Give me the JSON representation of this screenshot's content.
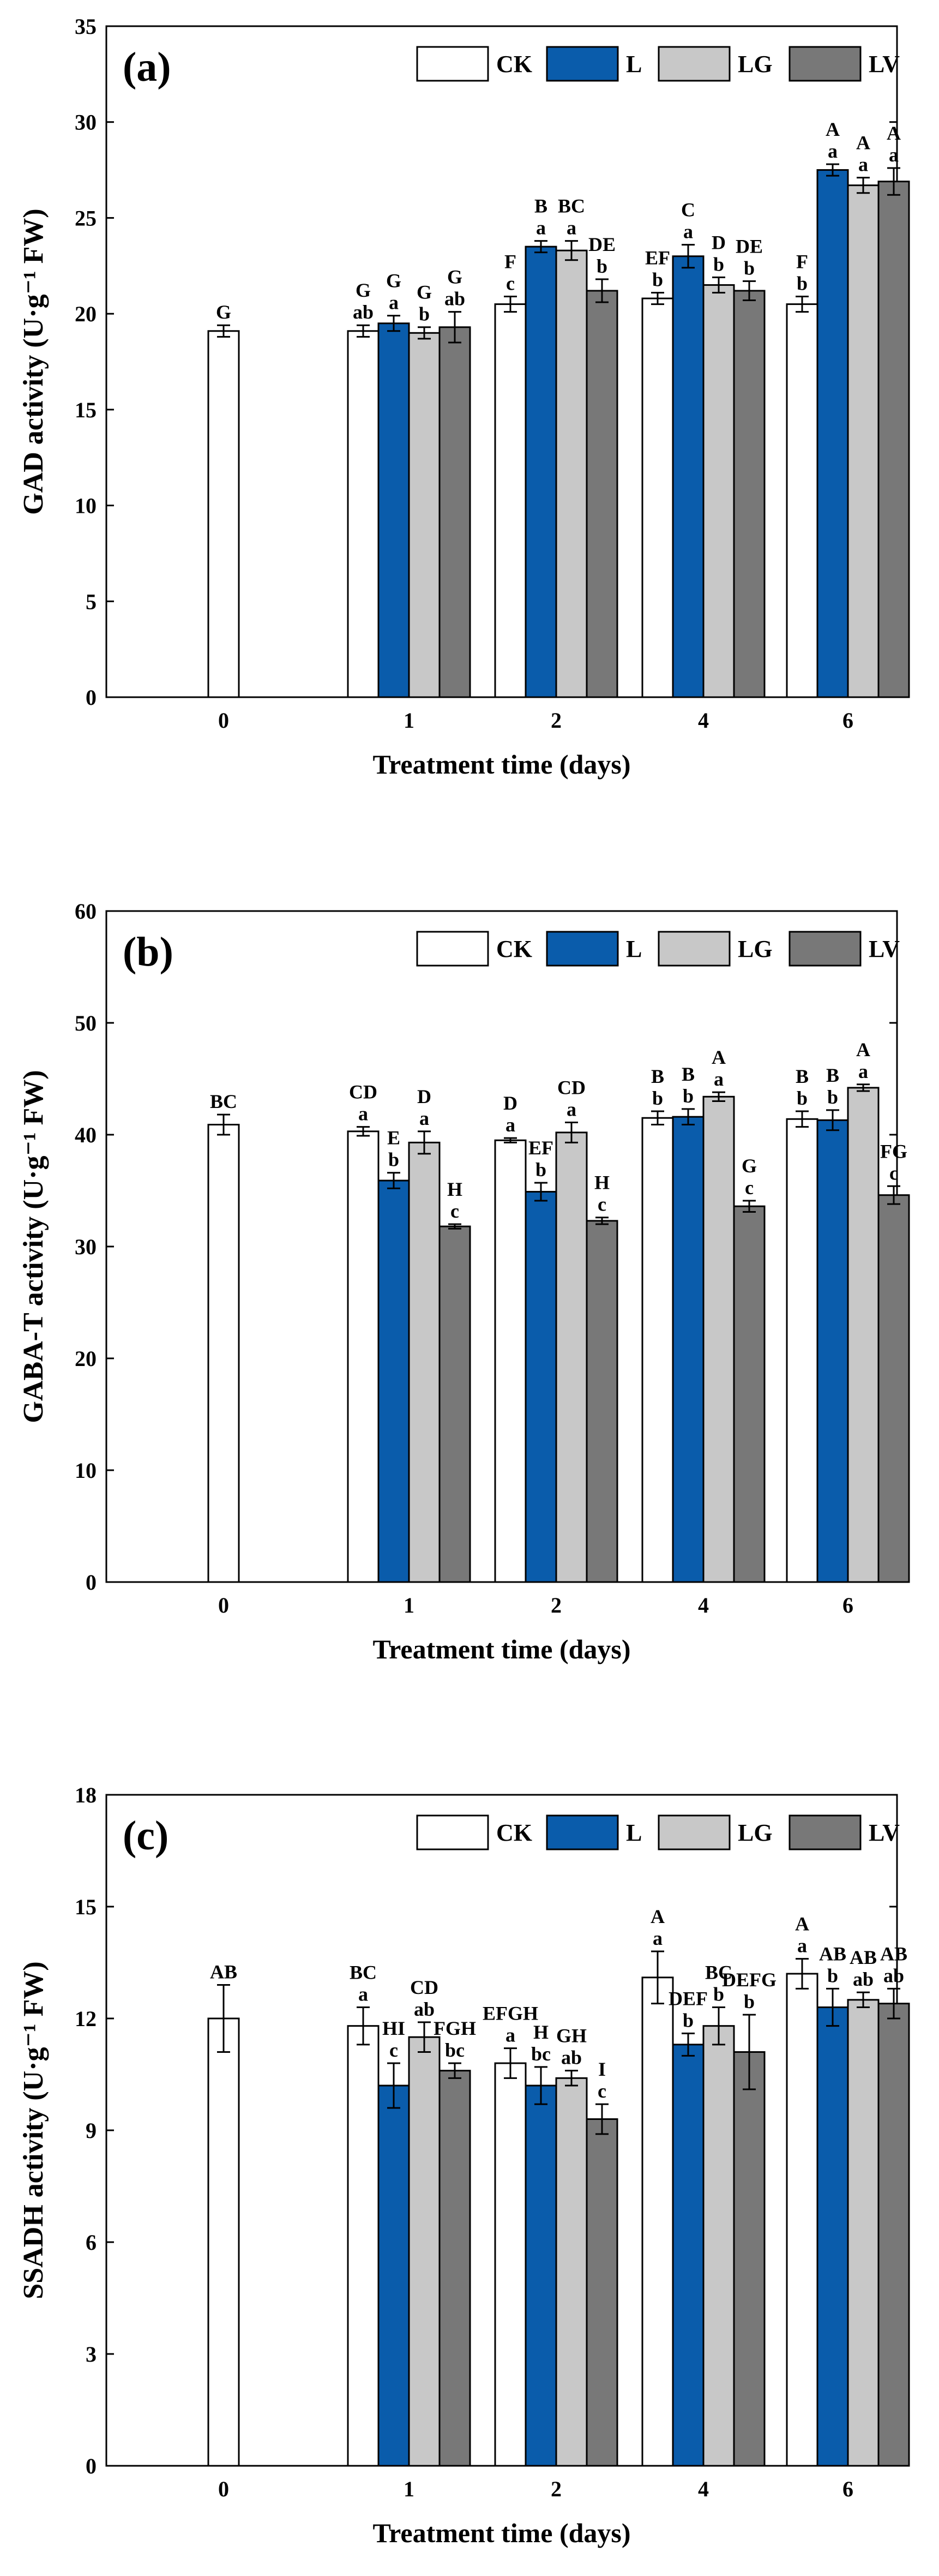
{
  "figure": {
    "series_colors": [
      "#ffffff",
      "#0a5cab",
      "#c8c8c8",
      "#787878"
    ]
  },
  "chart_data": [
    {
      "panel": "(a)",
      "type": "bar",
      "ylabel": "GAD activity (U·g⁻¹ FW)",
      "xlabel": "Treatment time (days)",
      "ylim": [
        0,
        35
      ],
      "yticks": [
        0,
        5,
        10,
        15,
        20,
        25,
        30,
        35
      ],
      "categories": [
        "0",
        "1",
        "2",
        "4",
        "6"
      ],
      "legend": [
        "CK",
        "L",
        "LG",
        "LV"
      ],
      "legend_position": "top-right",
      "series": [
        {
          "name": "CK",
          "values": [
            19.1,
            19.1,
            20.5,
            20.8,
            20.5
          ],
          "errors": [
            0.3,
            0.3,
            0.4,
            0.3,
            0.4
          ],
          "upper": [
            "G",
            "G",
            "F",
            "EF",
            "F"
          ],
          "lower": [
            "",
            "ab",
            "c",
            "b",
            "b"
          ]
        },
        {
          "name": "L",
          "values": [
            null,
            19.5,
            23.5,
            23.0,
            27.5
          ],
          "errors": [
            null,
            0.4,
            0.3,
            0.6,
            0.3
          ],
          "upper": [
            "",
            "G",
            "B",
            "C",
            "A"
          ],
          "lower": [
            "",
            "a",
            "a",
            "a",
            "a"
          ]
        },
        {
          "name": "LG",
          "values": [
            null,
            19.0,
            23.3,
            21.5,
            26.7
          ],
          "errors": [
            null,
            0.3,
            0.5,
            0.4,
            0.4
          ],
          "upper": [
            "",
            "G",
            "BC",
            "D",
            "A"
          ],
          "lower": [
            "",
            "b",
            "a",
            "b",
            "a"
          ]
        },
        {
          "name": "LV",
          "values": [
            null,
            19.3,
            21.2,
            21.2,
            26.9
          ],
          "errors": [
            null,
            0.8,
            0.6,
            0.5,
            0.7
          ],
          "upper": [
            "",
            "G",
            "DE",
            "DE",
            "A"
          ],
          "lower": [
            "",
            "ab",
            "b",
            "b",
            "a"
          ]
        }
      ]
    },
    {
      "panel": "(b)",
      "type": "bar",
      "ylabel": "GABA-T activity (U·g⁻¹ FW)",
      "xlabel": "Treatment time (days)",
      "ylim": [
        0,
        60
      ],
      "yticks": [
        0,
        10,
        20,
        30,
        40,
        50,
        60
      ],
      "categories": [
        "0",
        "1",
        "2",
        "4",
        "6"
      ],
      "legend": [
        "CK",
        "L",
        "LG",
        "LV"
      ],
      "legend_position": "top-right",
      "series": [
        {
          "name": "CK",
          "values": [
            40.9,
            40.3,
            39.5,
            41.5,
            41.4
          ],
          "errors": [
            0.9,
            0.4,
            0.2,
            0.6,
            0.7
          ],
          "upper": [
            "BC",
            "CD",
            "D",
            "B",
            "B"
          ],
          "lower": [
            "",
            "a",
            "a",
            "b",
            "b"
          ]
        },
        {
          "name": "L",
          "values": [
            null,
            35.9,
            34.9,
            41.6,
            41.3
          ],
          "errors": [
            null,
            0.7,
            0.8,
            0.7,
            0.9
          ],
          "upper": [
            "",
            "E",
            "EF",
            "B",
            "B"
          ],
          "lower": [
            "",
            "b",
            "b",
            "b",
            "b"
          ]
        },
        {
          "name": "LG",
          "values": [
            null,
            39.3,
            40.2,
            43.4,
            44.2
          ],
          "errors": [
            null,
            1.0,
            0.9,
            0.4,
            0.3
          ],
          "upper": [
            "",
            "D",
            "CD",
            "A",
            "A"
          ],
          "lower": [
            "",
            "a",
            "a",
            "a",
            "a"
          ]
        },
        {
          "name": "LV",
          "values": [
            null,
            31.8,
            32.3,
            33.6,
            34.6
          ],
          "errors": [
            null,
            0.2,
            0.3,
            0.5,
            0.8
          ],
          "upper": [
            "",
            "H",
            "H",
            "G",
            "FG"
          ],
          "lower": [
            "",
            "c",
            "c",
            "c",
            "c"
          ]
        }
      ]
    },
    {
      "panel": "(c)",
      "type": "bar",
      "ylabel": "SSADH activity (U·g⁻¹ FW)",
      "xlabel": "Treatment time (days)",
      "ylim": [
        0,
        18
      ],
      "yticks": [
        0,
        3,
        6,
        9,
        12,
        15,
        18
      ],
      "categories": [
        "0",
        "1",
        "2",
        "4",
        "6"
      ],
      "legend": [
        "CK",
        "L",
        "LG",
        "LV"
      ],
      "legend_position": "top-right",
      "series": [
        {
          "name": "CK",
          "values": [
            12.0,
            11.8,
            10.8,
            13.1,
            13.2
          ],
          "errors": [
            0.9,
            0.5,
            0.4,
            0.7,
            0.4
          ],
          "upper": [
            "AB",
            "BC",
            "EFGH",
            "A",
            "A"
          ],
          "lower": [
            "",
            "a",
            "a",
            "a",
            "a"
          ]
        },
        {
          "name": "L",
          "values": [
            null,
            10.2,
            10.2,
            11.3,
            12.3
          ],
          "errors": [
            null,
            0.6,
            0.5,
            0.3,
            0.5
          ],
          "upper": [
            "",
            "HI",
            "H",
            "DEF",
            "AB"
          ],
          "lower": [
            "",
            "c",
            "bc",
            "b",
            "b"
          ]
        },
        {
          "name": "LG",
          "values": [
            null,
            11.5,
            10.4,
            11.8,
            12.5
          ],
          "errors": [
            null,
            0.4,
            0.2,
            0.5,
            0.2
          ],
          "upper": [
            "",
            "CD",
            "GH",
            "BC",
            "AB"
          ],
          "lower": [
            "",
            "ab",
            "ab",
            "b",
            "ab"
          ]
        },
        {
          "name": "LV",
          "values": [
            null,
            10.6,
            9.3,
            11.1,
            12.4
          ],
          "errors": [
            null,
            0.2,
            0.4,
            1.0,
            0.4
          ],
          "upper": [
            "",
            "FGH",
            "I",
            "DEFG",
            "AB"
          ],
          "lower": [
            "",
            "bc",
            "c",
            "b",
            "ab"
          ]
        }
      ]
    }
  ]
}
